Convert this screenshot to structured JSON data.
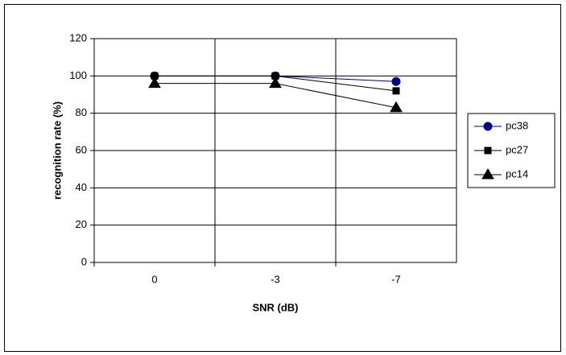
{
  "chart_data": {
    "type": "line",
    "x_label": "SNR (dB)",
    "y_label": "recognition rate (%)",
    "categories": [
      "0",
      "-3",
      "-7"
    ],
    "series": [
      {
        "name": "pc38",
        "color": "#000080",
        "marker": "circle",
        "values": [
          100,
          100,
          97
        ]
      },
      {
        "name": "pc27",
        "color": "#000000",
        "marker": "square",
        "values": [
          100,
          100,
          92
        ]
      },
      {
        "name": "pc14",
        "color": "#000000",
        "marker": "triangle",
        "values": [
          96,
          96,
          83
        ]
      }
    ],
    "ylim": [
      0,
      120
    ],
    "yticks": [
      0,
      20,
      40,
      60,
      80,
      100,
      120
    ],
    "grid": true,
    "legend": "right"
  }
}
